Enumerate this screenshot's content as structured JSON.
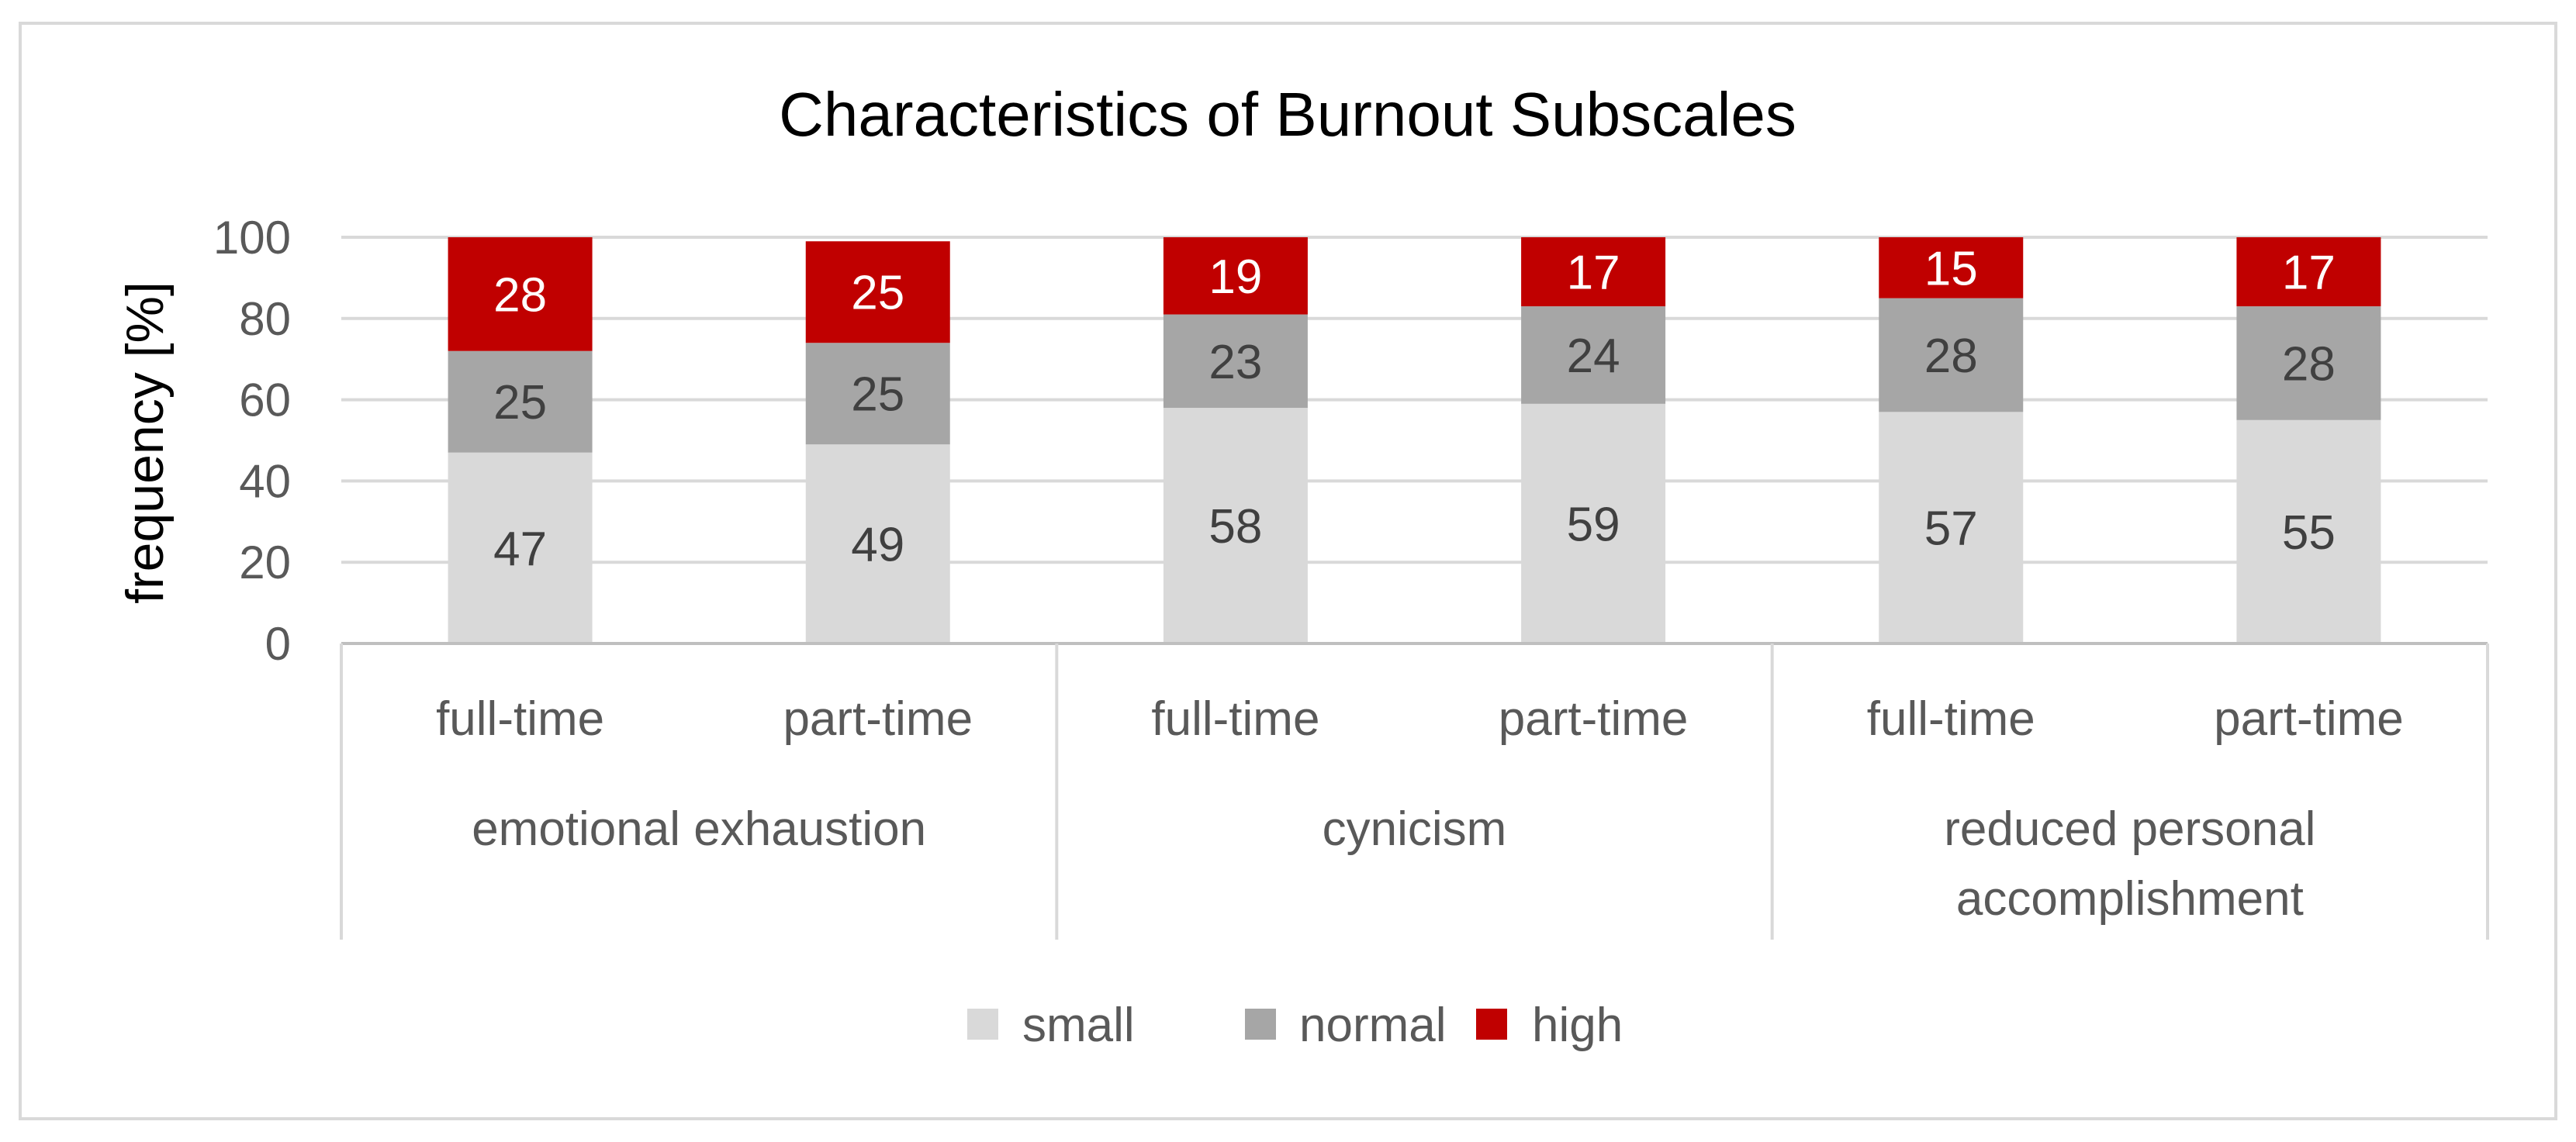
{
  "chart_data": {
    "type": "bar",
    "stacked": true,
    "title": "Characteristics of Burnout Subscales",
    "ylabel": "frequency [%]",
    "xlabel": "",
    "ylim": [
      0,
      100
    ],
    "yticks": [
      0,
      20,
      40,
      60,
      80,
      100
    ],
    "grid": true,
    "legend_position": "bottom",
    "groups": [
      {
        "label": "emotional exhaustion",
        "categories": [
          "full-time",
          "part-time"
        ]
      },
      {
        "label": "cynicism",
        "categories": [
          "full-time",
          "part-time"
        ]
      },
      {
        "label": "reduced personal accomplishment",
        "label_lines": [
          "reduced personal",
          "accomplishment"
        ],
        "categories": [
          "full-time",
          "part-time"
        ]
      }
    ],
    "series": [
      {
        "name": "small",
        "color": "#d9d9d9",
        "label_color": "#404040",
        "values": [
          47,
          49,
          58,
          59,
          57,
          55
        ]
      },
      {
        "name": "normal",
        "color": "#a6a6a6",
        "label_color": "#404040",
        "values": [
          25,
          25,
          23,
          24,
          28,
          28
        ]
      },
      {
        "name": "high",
        "color": "#c00000",
        "label_color": "#ffffff",
        "values": [
          28,
          25,
          19,
          17,
          15,
          17
        ]
      }
    ]
  }
}
